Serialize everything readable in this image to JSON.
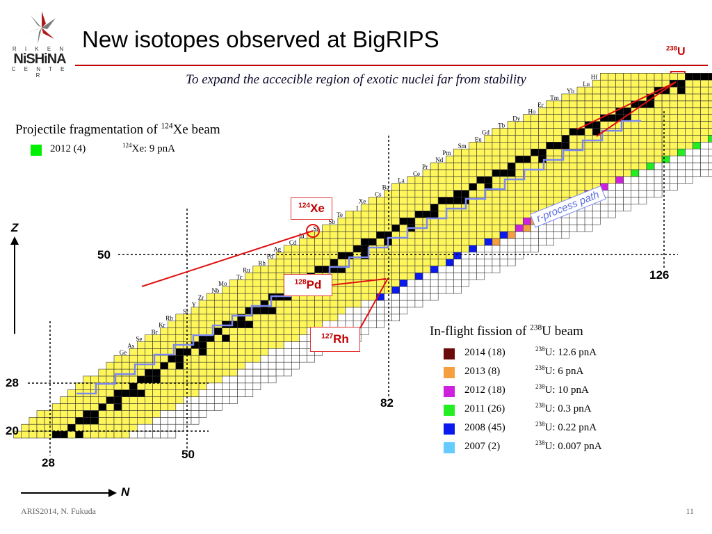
{
  "title": "New isotopes observed at BigRIPS",
  "subtitle": "To expand the accecible region of exotic nuclei far from stability",
  "logo": {
    "line1": "R I K E N",
    "line2": "NiSHiNA",
    "line3": "C E N T E R"
  },
  "u238_label": {
    "mass": "238",
    "symbol": "U"
  },
  "projectile": {
    "heading_prefix": "Projectile fragmentation of ",
    "mass": "124",
    "heading_suffix": "Xe beam",
    "entry_year": "2012 (4)",
    "entry_mass": "124",
    "entry_beam": "Xe: 9 pnA",
    "color": "#00ee00"
  },
  "fission": {
    "heading_prefix": "In-flight fission of ",
    "mass": "238",
    "heading_suffix": "U beam",
    "entries": [
      {
        "year": "2014 (18)",
        "mass": "238",
        "beam": "U: 12.6 pnA",
        "color": "#6b0a0a"
      },
      {
        "year": "2013 (8)",
        "mass": "238",
        "beam": "U: 6 pnA",
        "color": "#f5a040"
      },
      {
        "year": "2012 (18)",
        "mass": "238",
        "beam": "U: 10 pnA",
        "color": "#cc22dd"
      },
      {
        "year": "2011 (26)",
        "mass": "238",
        "beam": "U: 0.3 pnA",
        "color": "#22ee22"
      },
      {
        "year": "2008 (45)",
        "mass": "238",
        "beam": "U: 0.22 pnA",
        "color": "#0a1aee"
      },
      {
        "year": "2007 (2)",
        "mass": "238",
        "beam": "U: 0.007 pnA",
        "color": "#66ccff"
      }
    ]
  },
  "callouts": {
    "xe": {
      "mass": "124",
      "symbol": "Xe"
    },
    "pd": {
      "mass": "128",
      "symbol": "Pd"
    },
    "rh": {
      "mass": "127",
      "symbol": "Rh"
    }
  },
  "rprocess_label": "r-process path",
  "axes": {
    "z_label": "Z",
    "n_label": "N",
    "z_magic": [
      "50",
      "28",
      "20"
    ],
    "n_magic": [
      "126",
      "82",
      "50",
      "28"
    ]
  },
  "elements": [
    "Ge",
    "As",
    "Se",
    "Br",
    "Kr",
    "Rb",
    "Sr",
    "Y",
    "Zr",
    "Nb",
    "Mo",
    "Tc",
    "Ru",
    "Rh",
    "Pd",
    "Ag",
    "Cd",
    "In",
    "Sn",
    "Sb",
    "Te",
    "I",
    "Xe",
    "Cs",
    "Ba",
    "La",
    "Ce",
    "Pr",
    "Nd",
    "Pm",
    "Sm",
    "Eu",
    "Gd",
    "Tb",
    "Dy",
    "Ho",
    "Er",
    "Tm",
    "Yb",
    "Lu",
    "Hf"
  ],
  "colors": {
    "stable": "#000000",
    "known": "#fef65a",
    "unknown": "#ffffff",
    "arrow": "#e01010",
    "rprocess": "#7a88f0",
    "accent": "#c00000"
  },
  "footer": "ARIS2014, N. Fukuda",
  "page_number": "11"
}
